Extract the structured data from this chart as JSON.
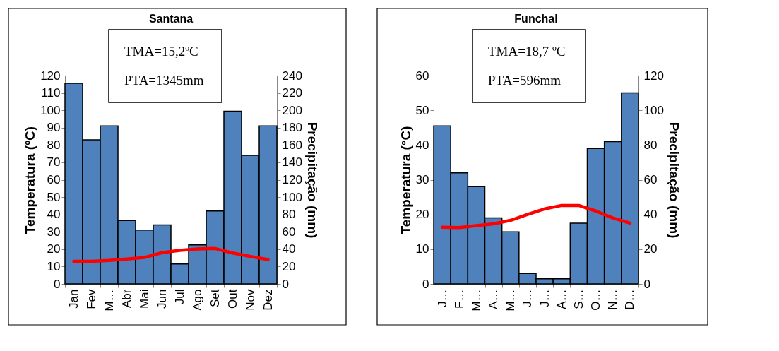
{
  "chart_data": [
    {
      "type": "bar",
      "title": "Santana",
      "categories": [
        "Jan",
        "Fev",
        "M…",
        "Abr",
        "Mai",
        "Jun",
        "Jul",
        "Ago",
        "Set",
        "Out",
        "Nov",
        "Dez"
      ],
      "ylabel": "Temperatura (ºC)",
      "y2label": "Precipitação (mm)",
      "ylim": [
        0,
        120
      ],
      "yticks": [
        0,
        10,
        20,
        30,
        40,
        50,
        60,
        70,
        80,
        90,
        100,
        110,
        120
      ],
      "y2lim": [
        0,
        240
      ],
      "y2ticks": [
        0,
        20,
        40,
        60,
        80,
        100,
        120,
        140,
        160,
        180,
        200,
        220,
        240
      ],
      "annotations": [
        "TMA=15,2ºC",
        "PTA=1345mm"
      ],
      "grid": false,
      "series": [
        {
          "axis": "y2",
          "color": "#4f81bd",
          "values": [
            231,
            166,
            182,
            73,
            62,
            68,
            23,
            45,
            84,
            199,
            148,
            182
          ]
        },
        {
          "type": "line",
          "axis": "y",
          "color": "#ff0000",
          "values": [
            13,
            13,
            13.5,
            14.3,
            15.2,
            18,
            19.3,
            20.1,
            20.4,
            17.8,
            15.8,
            14
          ]
        }
      ]
    },
    {
      "type": "bar",
      "title": "Funchal",
      "categories": [
        "J…",
        "F…",
        "M…",
        "A…",
        "M…",
        "J…",
        "J…",
        "A…",
        "S…",
        "O…",
        "N…",
        "D…"
      ],
      "ylabel": "Temperatura (°C)",
      "y2label": "Precipitação (mm)",
      "ylim": [
        0,
        60
      ],
      "yticks": [
        0,
        10,
        20,
        30,
        40,
        50,
        60
      ],
      "y2lim": [
        0,
        120
      ],
      "y2ticks": [
        0,
        20,
        40,
        60,
        80,
        100,
        120
      ],
      "annotations": [
        "TMA=18,7 ºC",
        "PTA=596mm"
      ],
      "grid": false,
      "series": [
        {
          "axis": "y2",
          "color": "#4f81bd",
          "values": [
            91,
            64,
            56,
            38,
            30,
            6,
            3,
            3,
            35,
            78,
            82,
            110
          ]
        },
        {
          "type": "line",
          "axis": "y",
          "color": "#ff0000",
          "values": [
            16.3,
            16.2,
            16.8,
            17.3,
            18.3,
            20,
            21.6,
            22.6,
            22.6,
            21,
            19,
            17.5
          ]
        }
      ]
    }
  ]
}
